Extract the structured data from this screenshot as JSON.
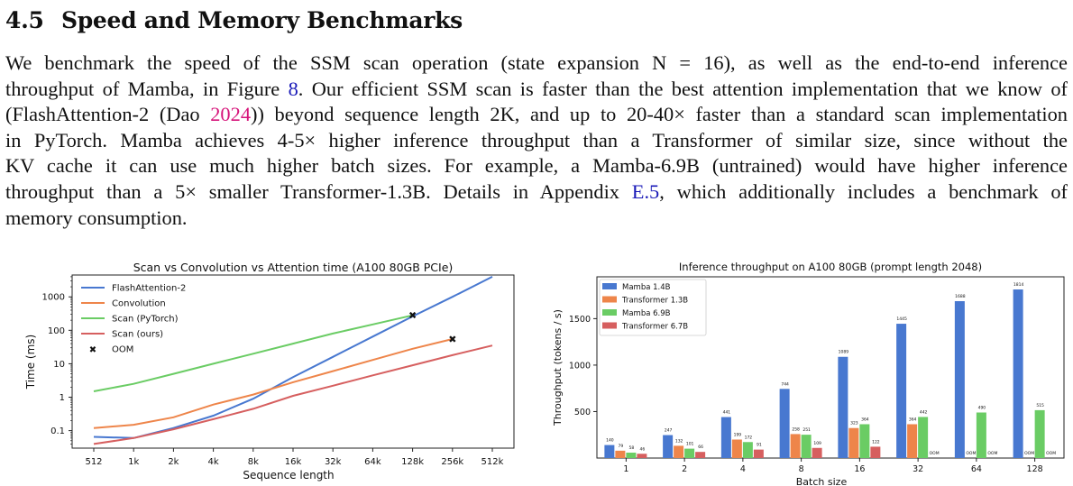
{
  "section": {
    "number": "4.5",
    "title": "Speed and Memory Benchmarks"
  },
  "paragraph": {
    "l1": "We benchmark the speed of the SSM scan operation (state expansion N = 16), as well as the end-to-end inference",
    "l2a": "throughput of Mamba, in Figure ",
    "l2ref": "8",
    "l2b": ". Our efficient SSM scan is faster than the best attention implementation that we know of",
    "l3a": "(FlashAttention-2 (Dao ",
    "l3cite": "2024",
    "l3b": ")) beyond sequence length 2K, and up to 20-40× faster than a standard scan implementation",
    "l4": "in PyTorch. Mamba achieves 4-5× higher inference throughput than a Transformer of similar size, since without the",
    "l5": "KV cache it can use much higher batch sizes. For example, a Mamba-6.9B (untrained) would have higher inference",
    "l6a": "throughput than a 5× smaller Transformer-1.3B. Details in Appendix ",
    "l6ref": "E.5",
    "l6b": ", which additionally includes a benchmark of",
    "l7": "memory consumption."
  },
  "chart_data": [
    {
      "type": "line",
      "title": "Scan vs Convolution vs Attention time (A100 80GB PCIe)",
      "xlabel": "Sequence length",
      "ylabel": "Time (ms)",
      "yscale": "log",
      "ylim": [
        0.03,
        4500
      ],
      "grid": false,
      "legend_position": "top-left",
      "categories": [
        "512",
        "1k",
        "2k",
        "4k",
        "8k",
        "16k",
        "32k",
        "64k",
        "128k",
        "256k",
        "512k"
      ],
      "ytick_labels": [
        "0.1",
        "1",
        "10",
        "100",
        "1000"
      ],
      "ytick_values": [
        0.1,
        1,
        10,
        100,
        1000
      ],
      "series": [
        {
          "name": "FlashAttention-2",
          "color": "#4878d0",
          "values": [
            0.065,
            0.06,
            0.12,
            0.28,
            0.9,
            4,
            16,
            65,
            260,
            1000,
            4000
          ]
        },
        {
          "name": "Convolution",
          "color": "#ee854a",
          "values": [
            0.12,
            0.15,
            0.25,
            0.6,
            1.2,
            2.8,
            6,
            13,
            28,
            55,
            null
          ]
        },
        {
          "name": "Scan (PyTorch)",
          "color": "#6acc64",
          "values": [
            1.5,
            2.5,
            5,
            10,
            20,
            40,
            80,
            150,
            280,
            null,
            null
          ]
        },
        {
          "name": "Scan (ours)",
          "color": "#d65f5f",
          "values": [
            0.04,
            0.06,
            0.11,
            0.22,
            0.45,
            1.1,
            2.2,
            4.5,
            9,
            18,
            35
          ]
        }
      ],
      "oom_marker_label": "OOM",
      "oom_points": [
        {
          "series": "Scan (PyTorch)",
          "x": "128k",
          "y": 280
        },
        {
          "series": "Convolution",
          "x": "256k",
          "y": 55
        }
      ]
    },
    {
      "type": "bar",
      "title": "Inference throughput on A100 80GB (prompt length 2048)",
      "xlabel": "Batch size",
      "ylabel": "Throughput (tokens / s)",
      "ylim": [
        0,
        1950
      ],
      "yticks": [
        500,
        1000,
        1500
      ],
      "legend_position": "top-left",
      "categories": [
        "1",
        "2",
        "4",
        "8",
        "16",
        "32",
        "64",
        "128"
      ],
      "series": [
        {
          "name": "Mamba 1.4B",
          "color": "#4878d0",
          "values": [
            140,
            247,
            441,
            744,
            1089,
            1445,
            1688,
            1814
          ]
        },
        {
          "name": "Transformer 1.3B",
          "color": "#ee854a",
          "values": [
            79,
            132,
            199,
            258,
            323,
            364,
            null,
            null
          ]
        },
        {
          "name": "Mamba 6.9B",
          "color": "#6acc64",
          "values": [
            58,
            101,
            172,
            251,
            364,
            442,
            490,
            515
          ]
        },
        {
          "name": "Transformer 6.7B",
          "color": "#d65f5f",
          "values": [
            46,
            66,
            91,
            109,
            122,
            null,
            null,
            null
          ]
        }
      ],
      "value_labels": [
        [
          "140",
          "247",
          "441",
          "744",
          "1089",
          "1445",
          "1688",
          "1814"
        ],
        [
          "79",
          "132",
          "199",
          "258",
          "323",
          "364",
          "OOM",
          "OOM"
        ],
        [
          "58",
          "101",
          "172",
          "251",
          "364",
          "442",
          "490",
          "515"
        ],
        [
          "46",
          "66",
          "91",
          "109",
          "122",
          "OOM",
          "OOM",
          "OOM"
        ]
      ]
    }
  ]
}
